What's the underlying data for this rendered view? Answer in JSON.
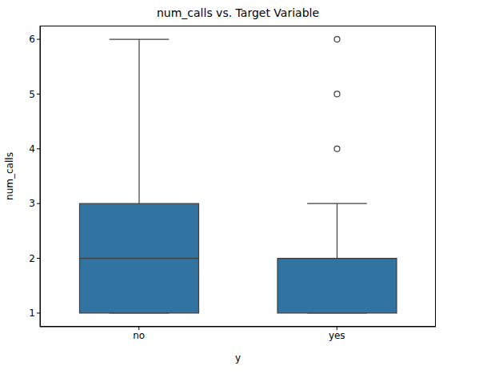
{
  "chart_data": {
    "type": "box",
    "title": "num_calls vs. Target Variable",
    "x_label": "y",
    "y_label": "num_calls",
    "categories": [
      "no",
      "yes"
    ],
    "boxes": [
      {
        "whislo": 1,
        "q1": 1,
        "median": 2,
        "q3": 3,
        "whishi": 6,
        "outliers": []
      },
      {
        "whislo": 1,
        "q1": 1,
        "median": 2,
        "q3": 2,
        "whishi": 3,
        "outliers": [
          4,
          5,
          6
        ]
      }
    ],
    "color": "#3274a1",
    "ylim": [
      0.75,
      6.25
    ],
    "yticks": [
      1,
      2,
      3,
      4,
      5,
      6
    ],
    "grid": false
  }
}
